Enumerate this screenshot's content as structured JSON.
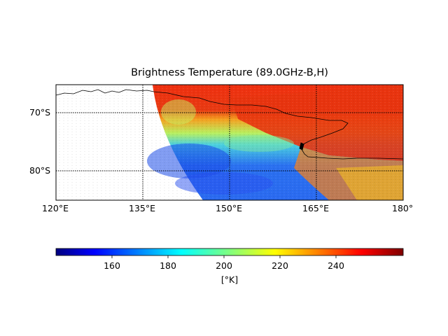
{
  "title": "Brightness Temperature (89.0GHz-B,H)",
  "map": {
    "lon_range": [
      120,
      180
    ],
    "lat_range": [
      -85,
      -65
    ],
    "lat_labels": [
      "70°S",
      "80°S"
    ],
    "lon_labels": [
      "120°E",
      "135°E",
      "150°E",
      "165°E",
      "180°"
    ],
    "gridlines": "dotted"
  },
  "colorbar": {
    "colormap": "jet",
    "range": [
      142,
      258
    ],
    "ticks": [
      "160",
      "180",
      "200",
      "220",
      "240"
    ],
    "label": "[°K]"
  }
}
